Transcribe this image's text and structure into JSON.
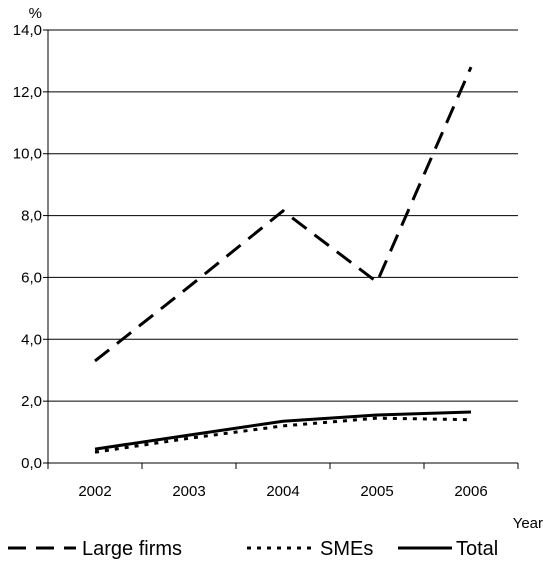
{
  "chart_data": {
    "type": "line",
    "categories": [
      "2002",
      "2003",
      "2004",
      "2005",
      "2006"
    ],
    "series": [
      {
        "name": "Large firms",
        "values": [
          3.3,
          5.7,
          8.15,
          5.85,
          12.8
        ],
        "style": "dashed"
      },
      {
        "name": "SMEs",
        "values": [
          0.35,
          0.8,
          1.2,
          1.45,
          1.4
        ],
        "style": "dotted"
      },
      {
        "name": "Total",
        "values": [
          0.45,
          0.9,
          1.35,
          1.55,
          1.65
        ],
        "style": "solid"
      }
    ],
    "ylabel": "%",
    "xlabel": "Year",
    "ylim": [
      0,
      14
    ],
    "yticks": [
      "0,0",
      "2,0",
      "4,0",
      "6,0",
      "8,0",
      "10,0",
      "12,0",
      "14,0"
    ],
    "grid": "horizontal",
    "legend": "bottom",
    "line_color": "#000000",
    "grid_color": "#000000"
  }
}
